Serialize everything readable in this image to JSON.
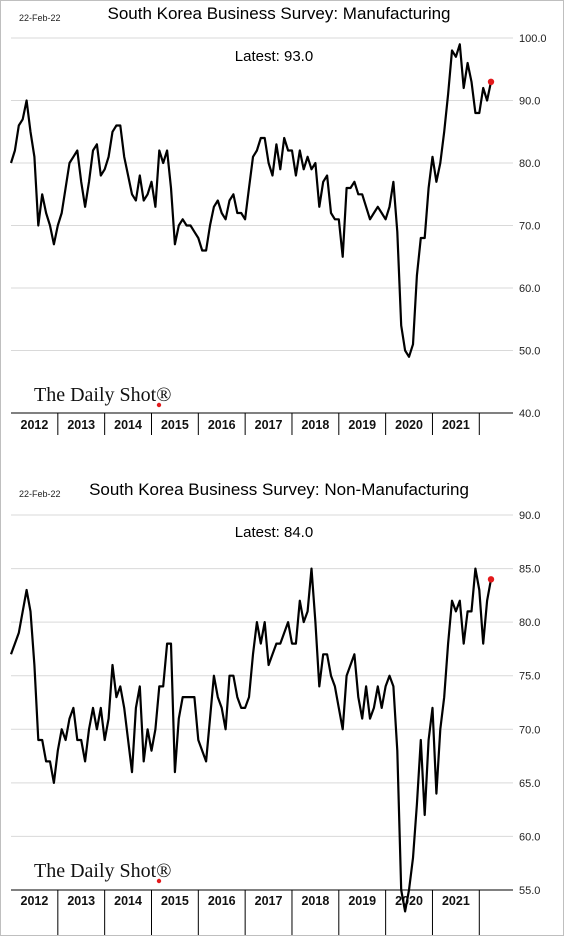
{
  "source_logo": "The Daily Shot®",
  "chart_data": [
    {
      "type": "line",
      "date_label": "22-Feb-22",
      "title": "South Korea Business Survey: Manufacturing",
      "latest_text": "Latest:  93.0",
      "ylim": [
        40,
        100
      ],
      "y_ticks": [
        "100.0",
        "90.0",
        "80.0",
        "70.0",
        "60.0",
        "50.0",
        "40.0"
      ],
      "x_labels": [
        "2012",
        "2013",
        "2014",
        "2015",
        "2016",
        "2017",
        "2018",
        "2019",
        "2020",
        "2021"
      ],
      "x_start": "2012-01",
      "x_end": "2022-02",
      "grid": true,
      "line_color": "#000000",
      "marker_color": "#e31a1c",
      "series": [
        {
          "values": [
            80,
            82,
            86,
            87,
            90,
            85,
            81,
            70,
            75,
            72,
            70,
            67,
            70,
            72,
            76,
            80,
            81,
            82,
            77,
            73,
            77,
            82,
            83,
            78,
            79,
            81,
            85,
            86,
            86,
            81,
            78,
            75,
            74,
            78,
            74,
            75,
            77,
            73,
            82,
            80,
            82,
            76,
            67,
            70,
            71,
            70,
            70,
            69,
            68,
            66,
            66,
            70,
            73,
            74,
            72,
            71,
            74,
            75,
            72,
            72,
            71,
            76,
            81,
            82,
            84,
            84,
            80,
            78,
            83,
            79,
            84,
            82,
            82,
            78,
            82,
            79,
            81,
            79,
            80,
            73,
            77,
            78,
            72,
            71,
            71,
            65,
            76,
            76,
            77,
            75,
            75,
            73,
            71,
            72,
            73,
            72,
            71,
            73,
            77,
            69,
            54,
            50,
            49,
            51,
            62,
            68,
            68,
            76,
            81,
            77,
            80,
            85,
            91,
            98,
            97,
            99,
            92,
            96,
            93,
            88,
            88,
            92,
            90,
            93
          ]
        }
      ]
    },
    {
      "type": "line",
      "date_label": "22-Feb-22",
      "title": "South Korea Business Survey: Non-Manufacturing",
      "latest_text": "Latest:  84.0",
      "ylim": [
        55,
        90
      ],
      "y_ticks": [
        "90.0",
        "85.0",
        "80.0",
        "75.0",
        "70.0",
        "65.0",
        "60.0",
        "55.0"
      ],
      "x_labels": [
        "2012",
        "2013",
        "2014",
        "2015",
        "2016",
        "2017",
        "2018",
        "2019",
        "2020",
        "2021"
      ],
      "x_start": "2012-01",
      "x_end": "2022-02",
      "grid": true,
      "line_color": "#000000",
      "marker_color": "#e31a1c",
      "series": [
        {
          "values": [
            77,
            78,
            79,
            81,
            83,
            81,
            76,
            69,
            69,
            67,
            67,
            65,
            68,
            70,
            69,
            71,
            72,
            69,
            69,
            67,
            70,
            72,
            70,
            72,
            69,
            71,
            76,
            73,
            74,
            72,
            69,
            66,
            72,
            74,
            67,
            70,
            68,
            70,
            74,
            74,
            78,
            78,
            66,
            71,
            73,
            73,
            73,
            73,
            69,
            68,
            67,
            71,
            75,
            73,
            72,
            70,
            75,
            75,
            73,
            72,
            72,
            73,
            77,
            80,
            78,
            80,
            76,
            77,
            78,
            78,
            79,
            80,
            78,
            78,
            82,
            80,
            81,
            85,
            80,
            74,
            77,
            77,
            75,
            74,
            72,
            70,
            75,
            76,
            77,
            73,
            71,
            74,
            71,
            72,
            74,
            72,
            74,
            75,
            74,
            68,
            55,
            53,
            55,
            58,
            63,
            69,
            62,
            69,
            72,
            64,
            70,
            73,
            78,
            82,
            81,
            82,
            78,
            81,
            81,
            85,
            83,
            78,
            82,
            84
          ]
        }
      ]
    }
  ]
}
